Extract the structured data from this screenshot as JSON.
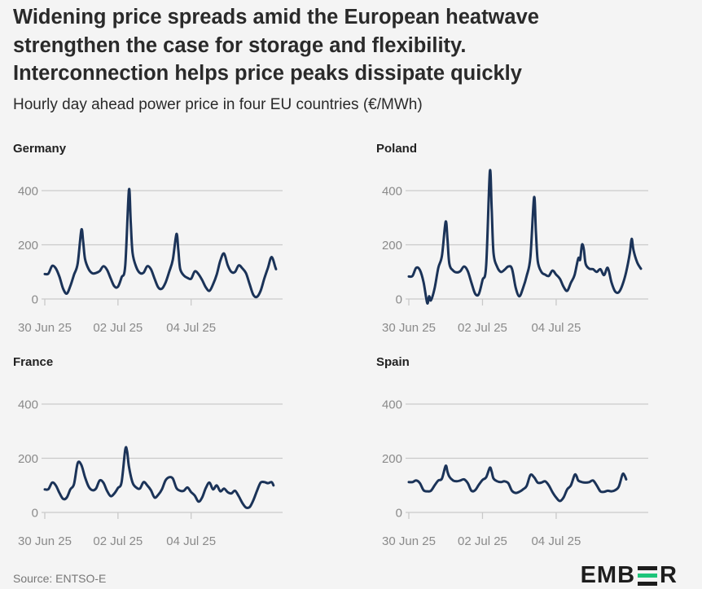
{
  "title_lines": [
    "Widening price spreads amid the European heatwave",
    "strengthen the case for storage and flexibility.",
    "Interconnection helps price peaks dissipate quickly"
  ],
  "subtitle": "Hourly day ahead power price in four EU countries (€/MWh)",
  "source": "Source: ENTSO-E",
  "brand": {
    "left": "EMB",
    "right": "R",
    "accent_color": "#1ec57a"
  },
  "colors": {
    "line": "#1b3358",
    "grid": "#c9c9c9",
    "tick_text": "#8a8a8a",
    "background": "#f4f4f4"
  },
  "chart_data": [
    {
      "type": "line",
      "title": "Germany",
      "x_ticks": [
        "30 Jun 25",
        "02 Jul 25",
        "04 Jul 25"
      ],
      "y_ticks": [
        0,
        200,
        400
      ],
      "ylim": [
        -30,
        480
      ],
      "grid": true,
      "x_unit": "day_offset_from_30_Jun_25",
      "xlim": [
        0,
        6.5
      ],
      "points": [
        [
          0,
          92
        ],
        [
          0.1,
          94
        ],
        [
          0.2,
          122
        ],
        [
          0.3,
          113
        ],
        [
          0.4,
          82
        ],
        [
          0.5,
          38
        ],
        [
          0.6,
          20
        ],
        [
          0.7,
          48
        ],
        [
          0.8,
          90
        ],
        [
          0.9,
          131
        ],
        [
          1.0,
          255
        ],
        [
          1.05,
          210
        ],
        [
          1.1,
          148
        ],
        [
          1.2,
          110
        ],
        [
          1.3,
          95
        ],
        [
          1.4,
          96
        ],
        [
          1.5,
          103
        ],
        [
          1.6,
          121
        ],
        [
          1.7,
          108
        ],
        [
          1.8,
          76
        ],
        [
          1.9,
          47
        ],
        [
          2.0,
          45
        ],
        [
          2.1,
          80
        ],
        [
          2.2,
          124
        ],
        [
          2.3,
          402
        ],
        [
          2.35,
          280
        ],
        [
          2.4,
          170
        ],
        [
          2.5,
          118
        ],
        [
          2.6,
          96
        ],
        [
          2.7,
          97
        ],
        [
          2.8,
          121
        ],
        [
          2.9,
          110
        ],
        [
          3.0,
          75
        ],
        [
          3.1,
          43
        ],
        [
          3.2,
          38
        ],
        [
          3.3,
          60
        ],
        [
          3.4,
          100
        ],
        [
          3.5,
          145
        ],
        [
          3.6,
          240
        ],
        [
          3.65,
          180
        ],
        [
          3.7,
          112
        ],
        [
          3.8,
          87
        ],
        [
          3.9,
          78
        ],
        [
          4.0,
          75
        ],
        [
          4.1,
          102
        ],
        [
          4.2,
          92
        ],
        [
          4.3,
          70
        ],
        [
          4.4,
          43
        ],
        [
          4.5,
          30
        ],
        [
          4.6,
          54
        ],
        [
          4.7,
          90
        ],
        [
          4.8,
          142
        ],
        [
          4.9,
          168
        ],
        [
          5.0,
          125
        ],
        [
          5.1,
          100
        ],
        [
          5.2,
          100
        ],
        [
          5.3,
          124
        ],
        [
          5.4,
          113
        ],
        [
          5.5,
          95
        ],
        [
          5.6,
          54
        ],
        [
          5.7,
          15
        ],
        [
          5.8,
          8
        ],
        [
          5.9,
          30
        ],
        [
          6.0,
          75
        ],
        [
          6.1,
          115
        ],
        [
          6.2,
          155
        ],
        [
          6.3,
          118
        ],
        [
          6.32,
          110
        ]
      ]
    },
    {
      "type": "line",
      "title": "Poland",
      "x_ticks": [
        "30 Jun 25",
        "02 Jul 25",
        "04 Jul 25"
      ],
      "y_ticks": [
        0,
        200,
        400
      ],
      "ylim": [
        -30,
        480
      ],
      "grid": true,
      "x_unit": "day_offset_from_30_Jun_25",
      "xlim": [
        0,
        6.5
      ],
      "points": [
        [
          0,
          83
        ],
        [
          0.1,
          85
        ],
        [
          0.2,
          115
        ],
        [
          0.3,
          107
        ],
        [
          0.4,
          62
        ],
        [
          0.5,
          -15
        ],
        [
          0.55,
          10
        ],
        [
          0.6,
          -5
        ],
        [
          0.7,
          40
        ],
        [
          0.8,
          115
        ],
        [
          0.9,
          160
        ],
        [
          1.0,
          285
        ],
        [
          1.05,
          220
        ],
        [
          1.1,
          130
        ],
        [
          1.2,
          105
        ],
        [
          1.3,
          98
        ],
        [
          1.4,
          103
        ],
        [
          1.5,
          120
        ],
        [
          1.6,
          103
        ],
        [
          1.7,
          60
        ],
        [
          1.8,
          20
        ],
        [
          1.9,
          18
        ],
        [
          2.0,
          70
        ],
        [
          2.1,
          125
        ],
        [
          2.2,
          470
        ],
        [
          2.25,
          330
        ],
        [
          2.3,
          170
        ],
        [
          2.4,
          118
        ],
        [
          2.5,
          100
        ],
        [
          2.6,
          108
        ],
        [
          2.7,
          120
        ],
        [
          2.8,
          112
        ],
        [
          2.9,
          42
        ],
        [
          3.0,
          10
        ],
        [
          3.1,
          40
        ],
        [
          3.2,
          85
        ],
        [
          3.3,
          155
        ],
        [
          3.4,
          375
        ],
        [
          3.45,
          250
        ],
        [
          3.5,
          140
        ],
        [
          3.6,
          100
        ],
        [
          3.7,
          90
        ],
        [
          3.8,
          85
        ],
        [
          3.9,
          105
        ],
        [
          4.0,
          90
        ],
        [
          4.1,
          75
        ],
        [
          4.2,
          45
        ],
        [
          4.3,
          30
        ],
        [
          4.4,
          60
        ],
        [
          4.5,
          88
        ],
        [
          4.6,
          150
        ],
        [
          4.65,
          145
        ],
        [
          4.7,
          200
        ],
        [
          4.75,
          185
        ],
        [
          4.8,
          130
        ],
        [
          4.9,
          112
        ],
        [
          5.0,
          110
        ],
        [
          5.1,
          100
        ],
        [
          5.2,
          110
        ],
        [
          5.3,
          88
        ],
        [
          5.4,
          115
        ],
        [
          5.5,
          62
        ],
        [
          5.6,
          28
        ],
        [
          5.7,
          25
        ],
        [
          5.8,
          52
        ],
        [
          5.9,
          100
        ],
        [
          6.0,
          170
        ],
        [
          6.05,
          222
        ],
        [
          6.1,
          180
        ],
        [
          6.2,
          135
        ],
        [
          6.3,
          112
        ]
      ]
    },
    {
      "type": "line",
      "title": "France",
      "x_ticks": [
        "30 Jun 25",
        "02 Jul 25",
        "04 Jul 25"
      ],
      "y_ticks": [
        0,
        200,
        400
      ],
      "ylim": [
        -30,
        480
      ],
      "grid": true,
      "x_unit": "day_offset_from_30_Jun_25",
      "xlim": [
        0,
        6.5
      ],
      "points": [
        [
          0,
          85
        ],
        [
          0.1,
          86
        ],
        [
          0.2,
          110
        ],
        [
          0.3,
          100
        ],
        [
          0.4,
          72
        ],
        [
          0.5,
          50
        ],
        [
          0.6,
          55
        ],
        [
          0.7,
          85
        ],
        [
          0.8,
          105
        ],
        [
          0.9,
          182
        ],
        [
          1.0,
          175
        ],
        [
          1.1,
          130
        ],
        [
          1.2,
          95
        ],
        [
          1.3,
          82
        ],
        [
          1.4,
          88
        ],
        [
          1.5,
          118
        ],
        [
          1.6,
          110
        ],
        [
          1.7,
          80
        ],
        [
          1.8,
          60
        ],
        [
          1.9,
          70
        ],
        [
          2.0,
          90
        ],
        [
          2.1,
          112
        ],
        [
          2.2,
          232
        ],
        [
          2.25,
          225
        ],
        [
          2.3,
          170
        ],
        [
          2.4,
          110
        ],
        [
          2.5,
          92
        ],
        [
          2.6,
          88
        ],
        [
          2.7,
          112
        ],
        [
          2.8,
          100
        ],
        [
          2.9,
          82
        ],
        [
          3.0,
          55
        ],
        [
          3.1,
          65
        ],
        [
          3.2,
          85
        ],
        [
          3.3,
          118
        ],
        [
          3.4,
          130
        ],
        [
          3.5,
          125
        ],
        [
          3.6,
          90
        ],
        [
          3.7,
          80
        ],
        [
          3.8,
          80
        ],
        [
          3.9,
          92
        ],
        [
          4.0,
          75
        ],
        [
          4.1,
          62
        ],
        [
          4.2,
          40
        ],
        [
          4.3,
          55
        ],
        [
          4.4,
          90
        ],
        [
          4.5,
          110
        ],
        [
          4.6,
          85
        ],
        [
          4.7,
          100
        ],
        [
          4.8,
          78
        ],
        [
          4.9,
          88
        ],
        [
          5.0,
          75
        ],
        [
          5.1,
          70
        ],
        [
          5.2,
          80
        ],
        [
          5.3,
          60
        ],
        [
          5.4,
          35
        ],
        [
          5.5,
          18
        ],
        [
          5.6,
          20
        ],
        [
          5.7,
          45
        ],
        [
          5.8,
          80
        ],
        [
          5.9,
          110
        ],
        [
          6.0,
          112
        ],
        [
          6.1,
          108
        ],
        [
          6.2,
          112
        ],
        [
          6.25,
          100
        ]
      ]
    },
    {
      "type": "line",
      "title": "Spain",
      "x_ticks": [
        "30 Jun 25",
        "02 Jul 25",
        "04 Jul 25"
      ],
      "y_ticks": [
        0,
        200,
        400
      ],
      "ylim": [
        -30,
        480
      ],
      "grid": true,
      "x_unit": "day_offset_from_30_Jun_25",
      "xlim": [
        0,
        6.5
      ],
      "points": [
        [
          0,
          112
        ],
        [
          0.1,
          112
        ],
        [
          0.2,
          118
        ],
        [
          0.3,
          108
        ],
        [
          0.4,
          82
        ],
        [
          0.5,
          78
        ],
        [
          0.6,
          80
        ],
        [
          0.7,
          100
        ],
        [
          0.8,
          118
        ],
        [
          0.9,
          125
        ],
        [
          1.0,
          172
        ],
        [
          1.05,
          150
        ],
        [
          1.1,
          132
        ],
        [
          1.2,
          118
        ],
        [
          1.3,
          115
        ],
        [
          1.4,
          118
        ],
        [
          1.5,
          122
        ],
        [
          1.6,
          108
        ],
        [
          1.7,
          80
        ],
        [
          1.8,
          82
        ],
        [
          1.9,
          102
        ],
        [
          2.0,
          120
        ],
        [
          2.1,
          130
        ],
        [
          2.2,
          165
        ],
        [
          2.25,
          150
        ],
        [
          2.3,
          125
        ],
        [
          2.4,
          115
        ],
        [
          2.5,
          112
        ],
        [
          2.6,
          115
        ],
        [
          2.7,
          108
        ],
        [
          2.8,
          80
        ],
        [
          2.9,
          72
        ],
        [
          3.0,
          76
        ],
        [
          3.1,
          85
        ],
        [
          3.2,
          98
        ],
        [
          3.3,
          138
        ],
        [
          3.4,
          130
        ],
        [
          3.5,
          110
        ],
        [
          3.6,
          110
        ],
        [
          3.7,
          115
        ],
        [
          3.8,
          100
        ],
        [
          3.9,
          75
        ],
        [
          4.0,
          55
        ],
        [
          4.1,
          42
        ],
        [
          4.2,
          55
        ],
        [
          4.3,
          85
        ],
        [
          4.4,
          100
        ],
        [
          4.5,
          138
        ],
        [
          4.55,
          135
        ],
        [
          4.6,
          118
        ],
        [
          4.7,
          112
        ],
        [
          4.8,
          110
        ],
        [
          4.9,
          112
        ],
        [
          5.0,
          118
        ],
        [
          5.1,
          100
        ],
        [
          5.2,
          78
        ],
        [
          5.3,
          76
        ],
        [
          5.4,
          80
        ],
        [
          5.5,
          78
        ],
        [
          5.6,
          82
        ],
        [
          5.7,
          95
        ],
        [
          5.8,
          140
        ],
        [
          5.85,
          138
        ],
        [
          5.9,
          122
        ]
      ]
    }
  ]
}
